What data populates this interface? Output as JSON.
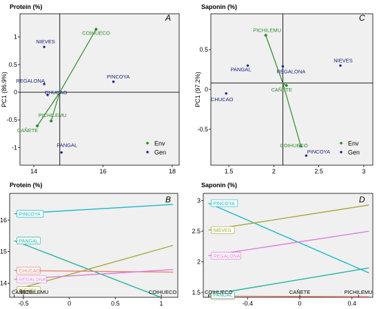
{
  "chart_data": [
    {
      "type": "scatter",
      "panel_letter": "A",
      "title": "Protein (%)",
      "ylabel": "PC1 (86.9%)",
      "xlim": [
        13.6,
        18.2
      ],
      "ylim": [
        -1.32,
        1.42
      ],
      "xticks": [
        14,
        16,
        18
      ],
      "yticks": [
        1.0,
        0.5,
        0.0,
        -0.5,
        -1.0
      ],
      "origin": [
        14.75,
        0.0
      ],
      "env_color": "#2e8b2e",
      "gen_color": "#1a237e",
      "series": [
        {
          "name": "Env",
          "points": [
            {
              "label": "COIHUECO",
              "x": 15.8,
              "y": 1.14
            },
            {
              "label": "PICHILEMU",
              "x": 14.5,
              "y": -0.52
            },
            {
              "label": "CAÑETE",
              "x": 14.1,
              "y": -0.61
            }
          ]
        },
        {
          "name": "Gen",
          "points": [
            {
              "label": "NIEVES",
              "x": 14.3,
              "y": 0.82
            },
            {
              "label": "PINCOYA",
              "x": 16.3,
              "y": 0.19
            },
            {
              "label": "REGALONA",
              "x": 14.3,
              "y": 0.15
            },
            {
              "label": "CHUCAO",
              "x": 14.4,
              "y": -0.05
            },
            {
              "label": "PANGAL",
              "x": 14.8,
              "y": -1.09
            }
          ]
        }
      ],
      "legend": [
        "Env",
        "Gen"
      ],
      "legend_position": "bottom-right",
      "grid": false
    },
    {
      "type": "scatter",
      "panel_letter": "C",
      "title": "Saponin (%)",
      "ylabel": "PC1 (97.2%)",
      "xlim": [
        1.3,
        3.1
      ],
      "ylim": [
        -0.95,
        0.95
      ],
      "xticks": [
        1.5,
        2.0,
        2.5,
        3.0
      ],
      "yticks": [
        0.5,
        0.0,
        -0.5
      ],
      "origin": [
        2.1,
        0.08
      ],
      "env_color": "#2e8b2e",
      "gen_color": "#1a237e",
      "series": [
        {
          "name": "Env",
          "points": [
            {
              "label": "PICHILEMU",
              "x": 1.91,
              "y": 0.68
            },
            {
              "label": "CAÑETE",
              "x": 2.14,
              "y": 0.05
            },
            {
              "label": "COIHUECO",
              "x": 2.3,
              "y": -0.71
            }
          ]
        },
        {
          "name": "Gen",
          "points": [
            {
              "label": "NIEVES",
              "x": 2.74,
              "y": 0.3
            },
            {
              "label": "PANGAL",
              "x": 1.71,
              "y": 0.3
            },
            {
              "label": "REGALONA",
              "x": 2.1,
              "y": 0.29
            },
            {
              "label": "CHUCAO",
              "x": 1.47,
              "y": -0.05
            },
            {
              "label": "PINCOYA",
              "x": 2.36,
              "y": -0.83
            }
          ]
        }
      ],
      "legend": [
        "Env",
        "Gen"
      ],
      "legend_position": "bottom-right",
      "grid": false
    },
    {
      "type": "line",
      "panel_letter": "B",
      "title": "Protein (%)",
      "xlim": [
        -0.65,
        1.18
      ],
      "ylim": [
        13.55,
        16.85
      ],
      "xticks": [
        -0.5,
        0.0,
        0.5,
        1.0
      ],
      "yticks": [
        16,
        15,
        14
      ],
      "x_markers": [
        {
          "label": "CAÑETE",
          "x": -0.6
        },
        {
          "label": "PICHILEMU",
          "x": -0.5
        },
        {
          "label": "COIHUECO",
          "x": 1.0
        }
      ],
      "series": [
        {
          "name": "PINCOYA",
          "color": "#17b8c9",
          "x": [
            -0.6,
            1.13
          ],
          "y": [
            16.2,
            16.5
          ]
        },
        {
          "name": "PANGAL",
          "color": "#1fb3a0",
          "x": [
            -0.6,
            1.13
          ],
          "y": [
            15.35,
            13.4
          ]
        },
        {
          "name": "NIEVES",
          "color": "#a8a83a",
          "x": [
            -0.6,
            1.13
          ],
          "y": [
            13.78,
            15.2
          ]
        },
        {
          "name": "CHUCAO",
          "color": "#e8846e",
          "x": [
            -0.6,
            1.13
          ],
          "y": [
            14.4,
            14.35
          ]
        },
        {
          "name": "REGALONA",
          "color": "#e07ad8",
          "x": [
            -0.6,
            1.13
          ],
          "y": [
            14.12,
            14.43
          ]
        }
      ],
      "grid": false
    },
    {
      "type": "line",
      "panel_letter": "D",
      "title": "Saponin (%)",
      "xlim": [
        -0.74,
        0.56
      ],
      "ylim": [
        1.42,
        3.12
      ],
      "xticks": [
        -0.4,
        0.0,
        0.4
      ],
      "yticks": [
        3.0,
        2.5,
        2.0,
        1.5
      ],
      "x_markers": [
        {
          "label": "COIHUECO",
          "x": -0.7
        },
        {
          "label": "CAÑETE",
          "x": 0.0
        },
        {
          "label": "PICHILEMU",
          "x": 0.45
        }
      ],
      "series": [
        {
          "name": "PINCOYA",
          "color": "#17b8c9",
          "x": [
            -0.7,
            0.53
          ],
          "y": [
            2.96,
            1.82
          ]
        },
        {
          "name": "NIEVES",
          "color": "#a8a83a",
          "x": [
            -0.7,
            0.53
          ],
          "y": [
            2.52,
            2.93
          ]
        },
        {
          "name": "REGALONA",
          "color": "#e07ad8",
          "x": [
            -0.7,
            0.53
          ],
          "y": [
            2.1,
            2.5
          ]
        },
        {
          "name": "CHUCAO",
          "color": "#e8846e",
          "x": [
            -0.7,
            0.53
          ],
          "y": [
            1.44,
            1.43
          ]
        },
        {
          "name": "PANGAL",
          "color": "#1fb3a0",
          "x": [
            -0.7,
            0.53
          ],
          "y": [
            1.46,
            1.9
          ]
        }
      ],
      "grid": false
    }
  ]
}
